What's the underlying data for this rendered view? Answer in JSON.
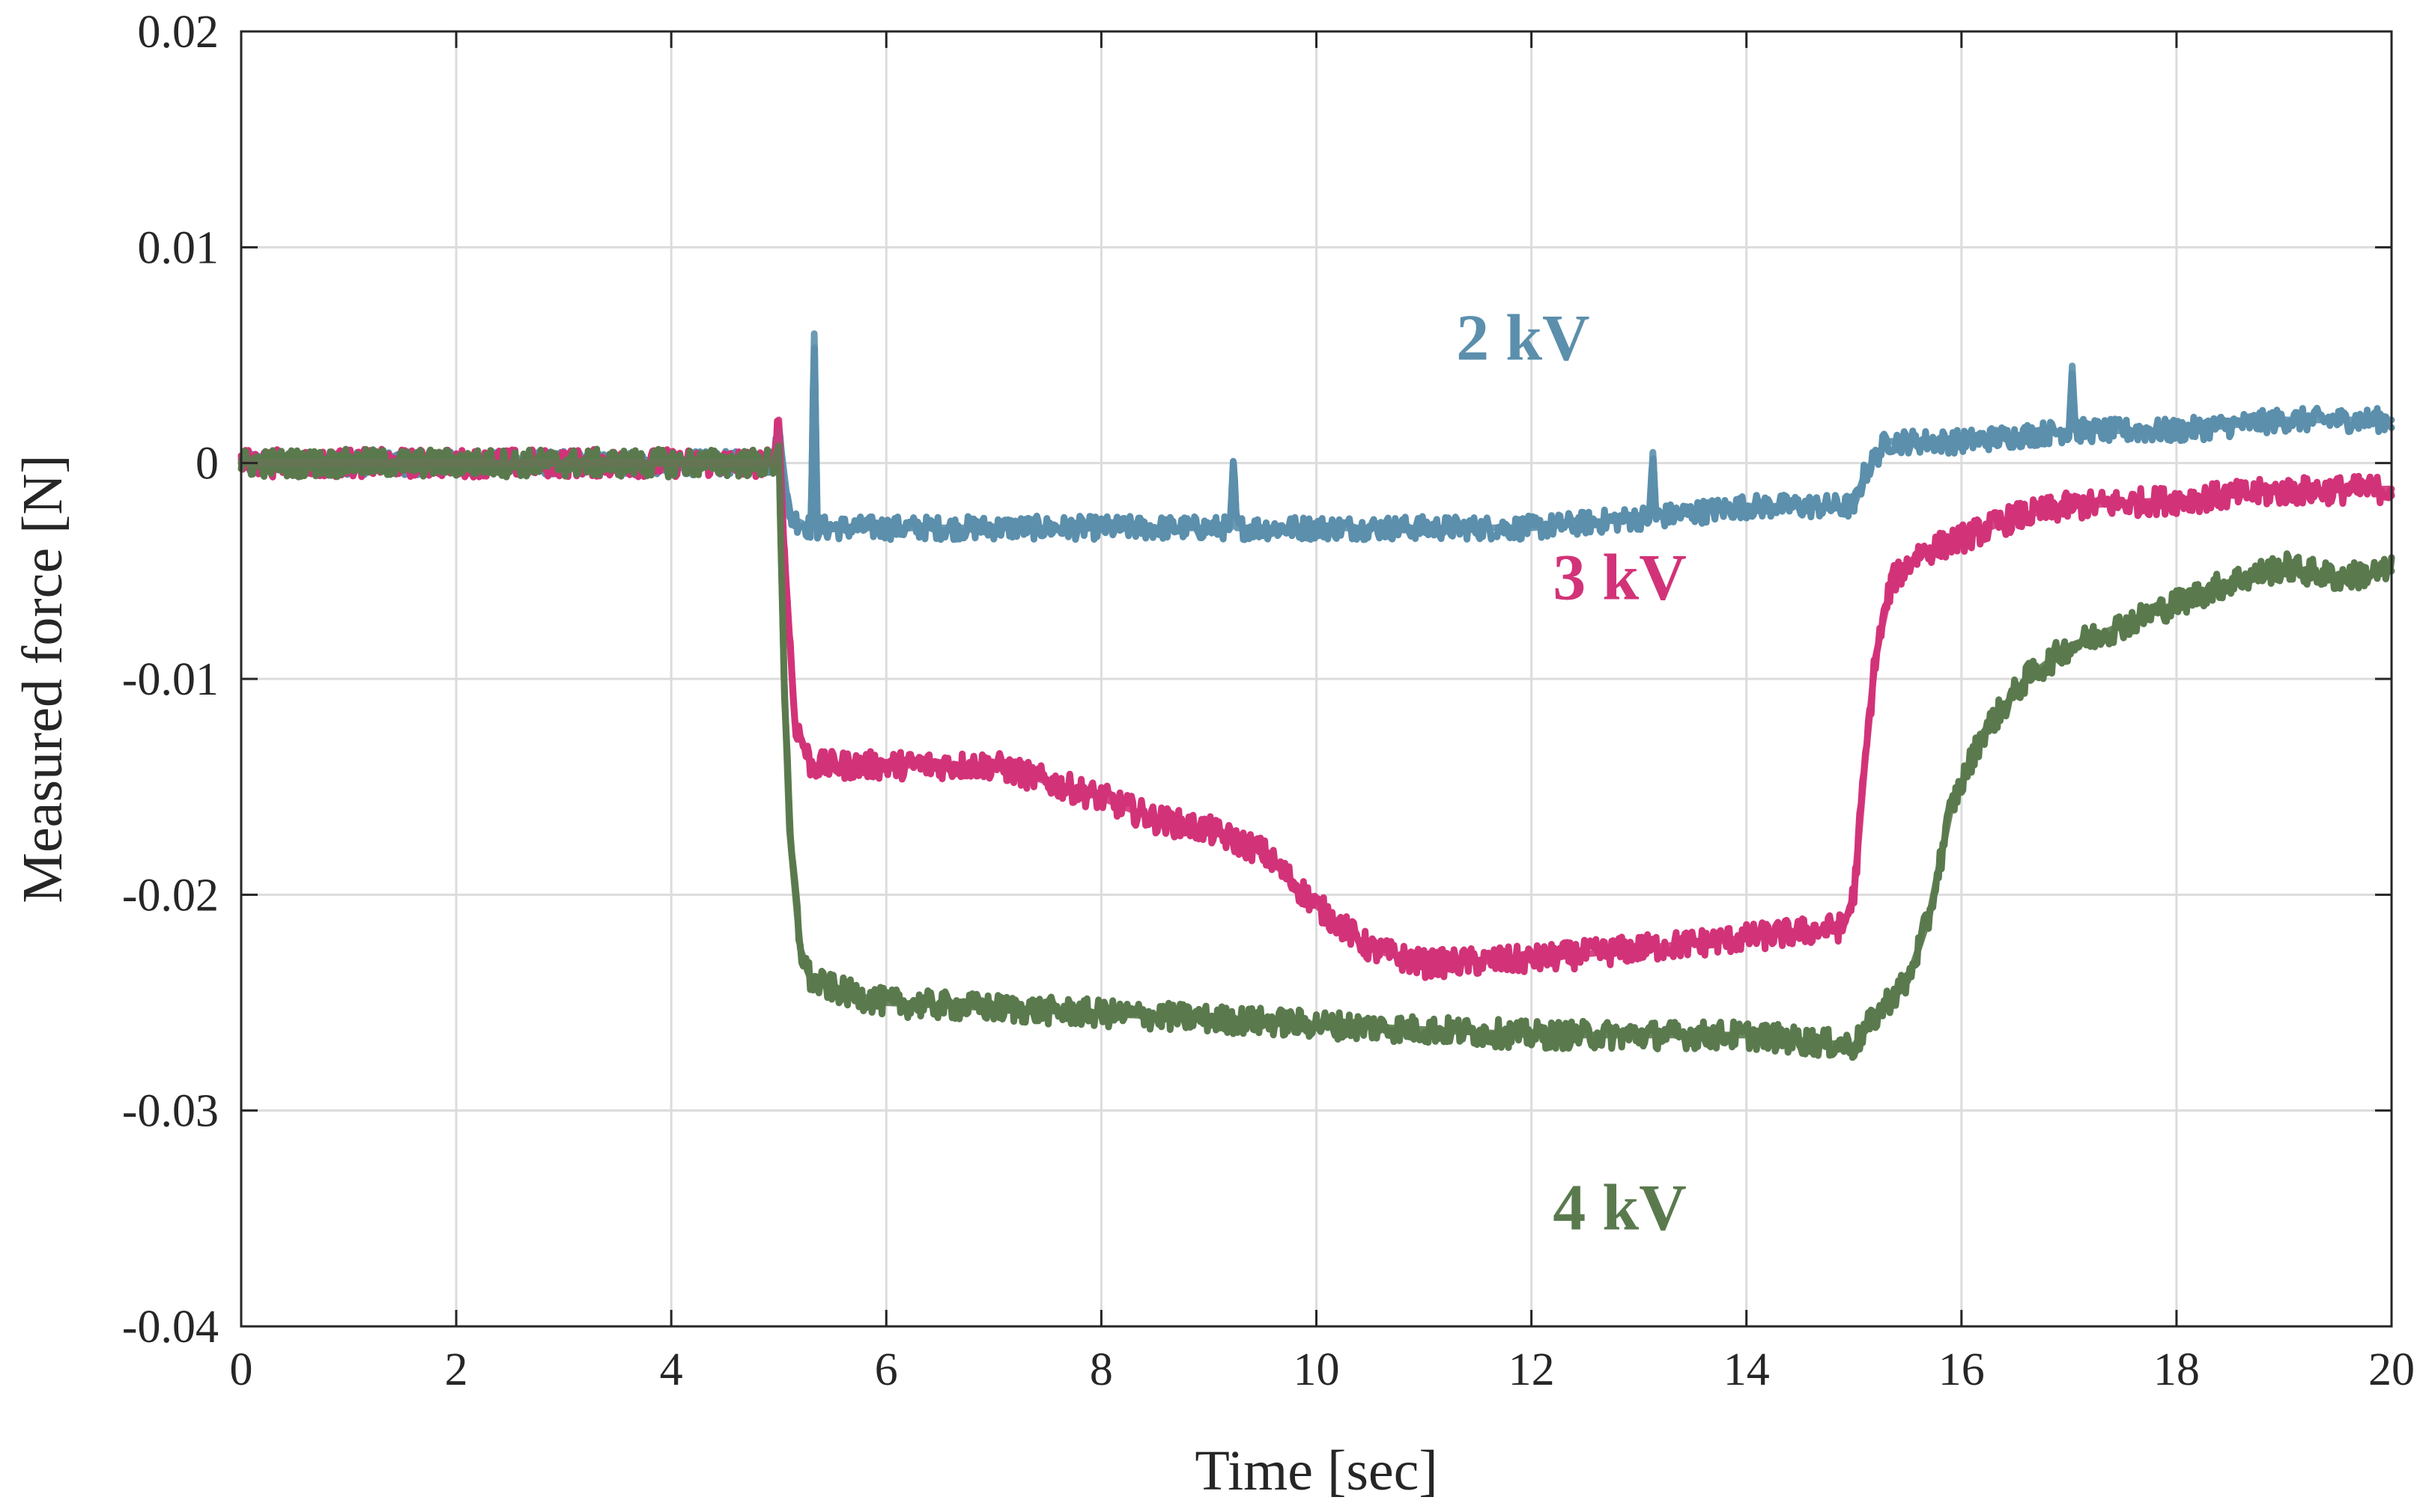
{
  "chart_data": {
    "type": "line",
    "title": "",
    "xlabel": "Time [sec]",
    "ylabel": "Measured force [N]",
    "xlim": [
      0,
      20
    ],
    "ylim": [
      -0.04,
      0.02
    ],
    "grid": true,
    "xticks": [
      0,
      2,
      4,
      6,
      8,
      10,
      12,
      14,
      16,
      18,
      20
    ],
    "xtick_labels": [
      "0",
      "2",
      "4",
      "6",
      "8",
      "10",
      "12",
      "14",
      "16",
      "18",
      "20"
    ],
    "yticks": [
      0.02,
      0.01,
      0,
      -0.01,
      -0.02,
      -0.03,
      -0.04
    ],
    "ytick_labels": [
      "0.02",
      "0.01",
      "0",
      "-0.01",
      "-0.02",
      "-0.03",
      "-0.04"
    ],
    "series": [
      {
        "name": "2 kV",
        "label": "2 kV",
        "color": "#5b8fac",
        "label_pos": [
          11.3,
          0.0048
        ],
        "noise": 0.0011,
        "x": [
          0,
          4.95,
          5.0,
          5.1,
          5.3,
          5.33,
          5.36,
          6,
          8,
          9.2,
          9.23,
          9.26,
          10,
          12,
          13.1,
          13.13,
          13.16,
          14,
          15,
          15.1,
          15.3,
          16,
          17,
          17.03,
          17.06,
          18,
          19,
          20
        ],
        "y": [
          0.0,
          0.0,
          0.0015,
          -0.0025,
          -0.003,
          0.006,
          -0.003,
          -0.003,
          -0.003,
          -0.003,
          0.0,
          -0.003,
          -0.003,
          -0.003,
          -0.0025,
          0.0005,
          -0.0025,
          -0.002,
          -0.002,
          -0.0005,
          0.001,
          0.001,
          0.0015,
          0.0045,
          0.0015,
          0.0015,
          0.002,
          0.002
        ]
      },
      {
        "name": "3 kV",
        "label": "3 kV",
        "color": "#d23378",
        "label_pos": [
          12.2,
          -0.0063
        ],
        "noise": 0.0013,
        "x": [
          0,
          4.95,
          5.0,
          5.05,
          5.15,
          5.3,
          6,
          7,
          8,
          8.5,
          9,
          9.5,
          10,
          10.5,
          11,
          12,
          13,
          14,
          14.9,
          15.0,
          15.1,
          15.2,
          15.35,
          15.6,
          16,
          16.5,
          17,
          18,
          19,
          20
        ],
        "y": [
          0.0,
          0.0,
          0.002,
          -0.004,
          -0.012,
          -0.014,
          -0.014,
          -0.014,
          -0.0155,
          -0.0165,
          -0.017,
          -0.018,
          -0.0205,
          -0.0225,
          -0.0232,
          -0.023,
          -0.0225,
          -0.022,
          -0.0215,
          -0.02,
          -0.014,
          -0.009,
          -0.0055,
          -0.0042,
          -0.0035,
          -0.0025,
          -0.002,
          -0.0017,
          -0.0013,
          -0.0012
        ]
      },
      {
        "name": "4 kV",
        "label": "4 kV",
        "color": "#5a7a4e",
        "label_pos": [
          12.2,
          -0.0355
        ],
        "noise": 0.0013,
        "x": [
          0,
          4.95,
          5.0,
          5.05,
          5.1,
          5.2,
          5.3,
          5.6,
          6,
          8,
          10,
          12,
          14,
          15.0,
          15.3,
          15.5,
          15.7,
          15.9,
          16.2,
          16.6,
          17,
          17.5,
          18,
          18.5,
          19,
          19.5,
          20
        ],
        "y": [
          0.0,
          0.0,
          0.0008,
          -0.01,
          -0.017,
          -0.0225,
          -0.024,
          -0.0245,
          -0.025,
          -0.0255,
          -0.026,
          -0.0265,
          -0.0265,
          -0.027,
          -0.025,
          -0.024,
          -0.021,
          -0.016,
          -0.0125,
          -0.01,
          -0.0085,
          -0.0075,
          -0.0065,
          -0.0055,
          -0.0048,
          -0.0053,
          -0.005
        ]
      }
    ]
  }
}
